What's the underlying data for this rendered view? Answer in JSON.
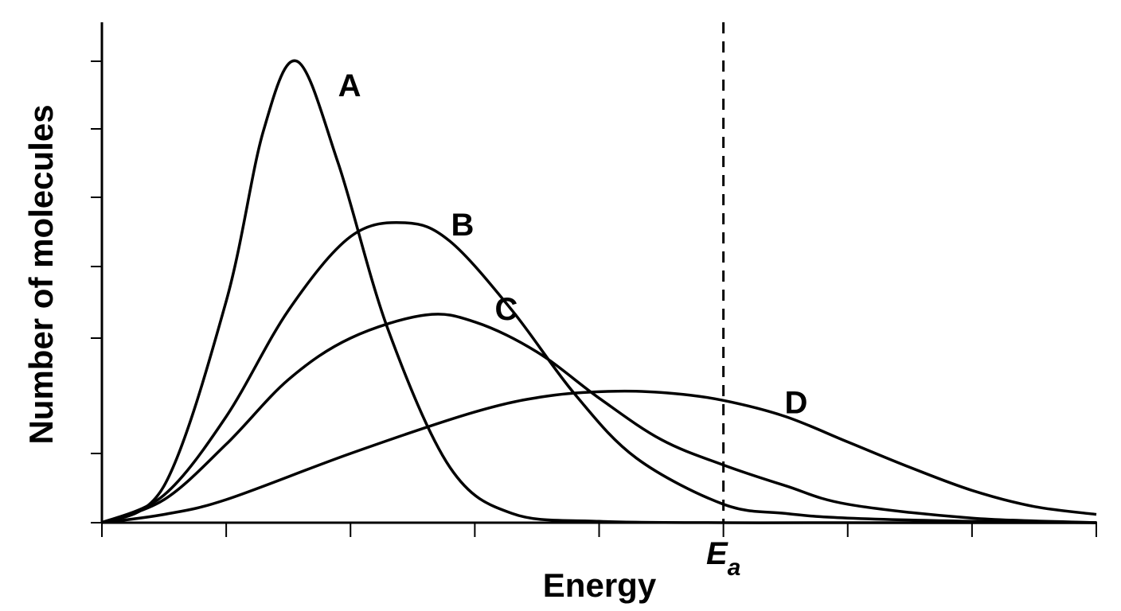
{
  "chart_data": {
    "type": "line",
    "title": "",
    "xlabel": "Energy",
    "ylabel": "Number of molecules",
    "x_ticks": 9,
    "y_ticks": 7,
    "xlim": [
      0,
      8
    ],
    "ylim": [
      0,
      100
    ],
    "threshold": {
      "x": 5.0,
      "label_main": "E",
      "label_sub": "a",
      "style": "dashed"
    },
    "series": [
      {
        "name": "A",
        "x": [
          0,
          0.5,
          1.0,
          1.3,
          1.57,
          1.9,
          2.3,
          2.8,
          3.3,
          4.0,
          5.0,
          6.0,
          8.0
        ],
        "y": [
          0,
          8,
          48,
          85,
          100,
          78,
          42,
          12,
          2,
          0.3,
          0,
          0,
          0
        ]
      },
      {
        "name": "B",
        "x": [
          0,
          0.5,
          1.0,
          1.5,
          2.0,
          2.44,
          2.8,
          3.3,
          3.8,
          4.3,
          5.0,
          5.5,
          6.0,
          7.0,
          8.0
        ],
        "y": [
          0,
          6,
          23,
          46,
          62,
          65,
          61,
          46,
          28,
          14,
          4,
          2,
          1,
          0.3,
          0
        ]
      },
      {
        "name": "C",
        "x": [
          0,
          0.5,
          1.0,
          1.5,
          2.0,
          2.6,
          3.0,
          3.5,
          4.0,
          4.5,
          5.0,
          5.5,
          6.0,
          7.0,
          8.0
        ],
        "y": [
          0,
          5,
          17,
          31,
          40,
          45,
          43.5,
          37,
          27,
          18,
          12.5,
          8,
          4,
          1,
          0
        ]
      },
      {
        "name": "D",
        "x": [
          0,
          0.5,
          1.0,
          2.0,
          3.0,
          3.6,
          4.15,
          4.6,
          5.0,
          5.5,
          6.0,
          6.5,
          7.0,
          7.5,
          8.0
        ],
        "y": [
          0,
          1.8,
          5,
          15,
          24,
          27.5,
          28.5,
          28,
          26.5,
          23,
          17.5,
          12,
          7,
          3.5,
          1.8
        ]
      }
    ]
  }
}
